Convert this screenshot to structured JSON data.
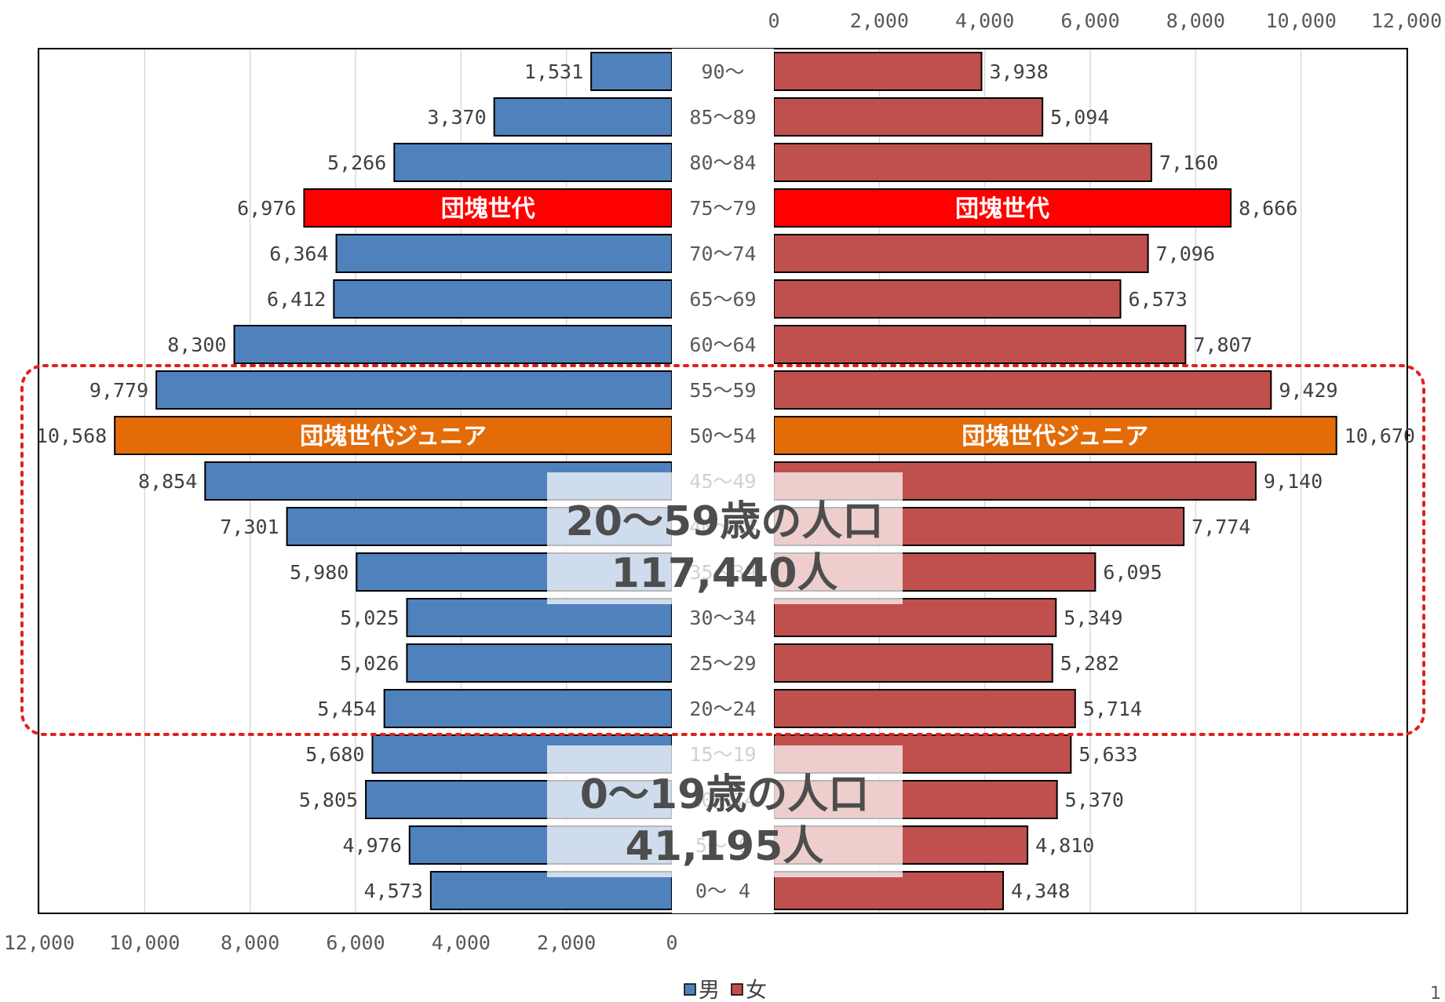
{
  "chart_data": {
    "type": "bar",
    "subtype": "population-pyramid",
    "orientation": "horizontal",
    "categories": [
      "90～",
      "85～89",
      "80～84",
      "75～79",
      "70～74",
      "65～69",
      "60～64",
      "55～59",
      "50～54",
      "45～49",
      "40～44",
      "35～39",
      "30～34",
      "25～29",
      "20～24",
      "15～19",
      "10～14",
      "5～ 9",
      "0～ 4"
    ],
    "series": [
      {
        "name": "男",
        "color": "#4f81bd",
        "values": [
          1531,
          3370,
          5266,
          6976,
          6364,
          6412,
          8300,
          9779,
          10568,
          8854,
          7301,
          5980,
          5025,
          5026,
          5454,
          5680,
          5805,
          4976,
          4573
        ]
      },
      {
        "name": "女",
        "color": "#c0504d",
        "values": [
          3938,
          5094,
          7160,
          8666,
          7096,
          6573,
          7807,
          9429,
          10670,
          9140,
          7774,
          6095,
          5349,
          5282,
          5714,
          5633,
          5370,
          4810,
          4348
        ]
      }
    ],
    "xlim": [
      0,
      12000
    ],
    "male_ticks": [
      "12,000",
      "10,000",
      "8,000",
      "6,000",
      "4,000",
      "2,000",
      "0"
    ],
    "female_ticks": [
      "0",
      "2,000",
      "4,000",
      "6,000",
      "8,000",
      "10,000",
      "12,000"
    ],
    "grid": true,
    "legend": {
      "position": "bottom",
      "items": [
        "男",
        "女"
      ]
    },
    "highlights": [
      {
        "category": "75～79",
        "label": "団塊世代",
        "color": "#ff0000"
      },
      {
        "category": "50～54",
        "label": "団塊世代ジュニア",
        "color": "#e36c09"
      }
    ],
    "annotations": [
      {
        "text": "20～59歳の人口",
        "value_text": "117,440人"
      },
      {
        "text": "0～19歳の人口",
        "value_text": "41,195人"
      }
    ],
    "range_box_color": "#e0201b"
  },
  "page_number": "1"
}
